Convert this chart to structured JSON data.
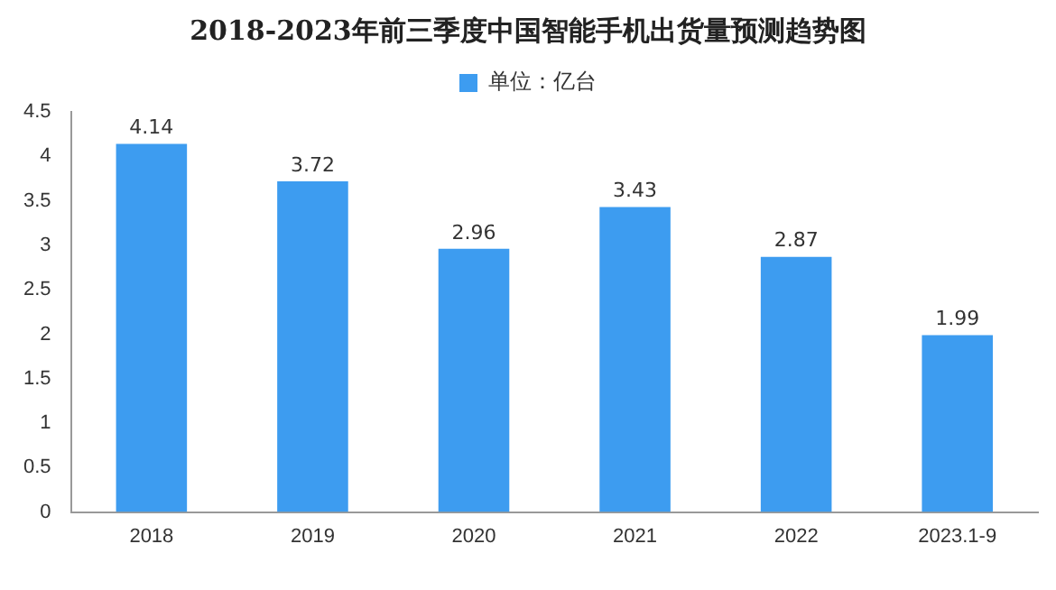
{
  "chart_data": {
    "type": "bar",
    "title": "2018-2023年前三季度中国智能手机出货量预测趋势图",
    "categories": [
      "2018",
      "2019",
      "2020",
      "2021",
      "2022",
      "2023.1-9"
    ],
    "series": [
      {
        "name": "单位：亿台",
        "color": "#3d9cf0",
        "values": [
          4.14,
          3.72,
          2.96,
          3.43,
          2.87,
          1.99
        ]
      }
    ],
    "ylim": [
      0,
      4.5
    ],
    "yticks": [
      0,
      0.5,
      1,
      1.5,
      2,
      2.5,
      3,
      3.5,
      4,
      4.5
    ],
    "grid": false,
    "legend": "top",
    "data_labels": true
  }
}
